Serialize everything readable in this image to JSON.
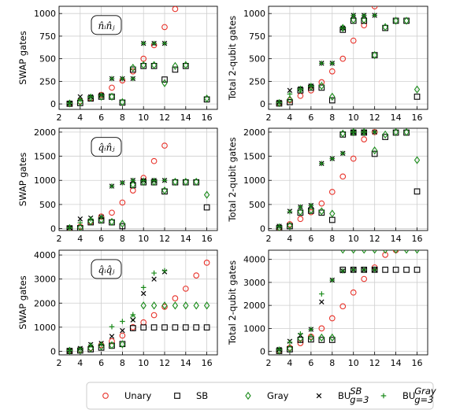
{
  "chart_data": [
    {
      "type": "scatter",
      "annotation": "n̂ᵢn̂ⱼ",
      "ylabel": "SWAP gates",
      "xlim": [
        2,
        17
      ],
      "ylim": [
        -60,
        1080
      ],
      "xticks": [
        2,
        4,
        6,
        8,
        10,
        12,
        14,
        16
      ],
      "yticks": [
        0,
        250,
        500,
        750,
        1000
      ],
      "grid": true,
      "series": [
        {
          "name": "Unary",
          "marker": "circle",
          "color": "#e8322a",
          "x": [
            3,
            4,
            5,
            6,
            7,
            8,
            9,
            10,
            11,
            12,
            13
          ],
          "y": [
            5,
            30,
            60,
            100,
            180,
            260,
            360,
            500,
            650,
            850,
            1050
          ]
        },
        {
          "name": "SB",
          "marker": "square",
          "color": "#000000",
          "x": [
            3,
            4,
            5,
            6,
            7,
            8,
            9,
            10,
            11,
            12,
            13,
            14,
            16
          ],
          "y": [
            2,
            10,
            60,
            80,
            80,
            15,
            380,
            420,
            420,
            270,
            380,
            420,
            50
          ]
        },
        {
          "name": "Gray",
          "marker": "diamond",
          "color": "#1a8a1a",
          "x": [
            3,
            4,
            5,
            6,
            7,
            8,
            9,
            10,
            11,
            12,
            13,
            14,
            16
          ],
          "y": [
            5,
            20,
            70,
            80,
            80,
            20,
            400,
            430,
            430,
            230,
            420,
            430,
            60
          ]
        },
        {
          "name": "BU_SB",
          "marker": "x",
          "color": "#000000",
          "x": [
            3,
            4,
            5,
            6,
            7,
            8,
            9,
            10,
            11,
            12
          ],
          "y": [
            10,
            80,
            80,
            100,
            280,
            280,
            280,
            670,
            670,
            670
          ]
        },
        {
          "name": "BU_Gray",
          "marker": "plus",
          "color": "#1a8a1a",
          "x": [
            3,
            4,
            5,
            6,
            7,
            8,
            9,
            10,
            11,
            12
          ],
          "y": [
            10,
            50,
            80,
            100,
            280,
            280,
            280,
            670,
            670,
            670
          ]
        }
      ]
    },
    {
      "type": "scatter",
      "ylabel": "Total 2-qubit gates",
      "xlim": [
        2,
        17
      ],
      "ylim": [
        -60,
        1080
      ],
      "xticks": [
        2,
        4,
        6,
        8,
        10,
        12,
        14,
        16
      ],
      "yticks": [
        0,
        250,
        500,
        750,
        1000
      ],
      "grid": true,
      "series": [
        {
          "name": "Unary",
          "marker": "circle",
          "color": "#e8322a",
          "x": [
            3,
            4,
            5,
            6,
            7,
            8,
            9,
            10,
            11,
            12
          ],
          "y": [
            10,
            40,
            90,
            150,
            240,
            360,
            500,
            700,
            870,
            1080
          ]
        },
        {
          "name": "SB",
          "marker": "square",
          "color": "#000000",
          "x": [
            3,
            4,
            5,
            6,
            7,
            8,
            9,
            10,
            11,
            12,
            13,
            14,
            15,
            16
          ],
          "y": [
            5,
            20,
            150,
            180,
            180,
            40,
            820,
            920,
            920,
            540,
            840,
            920,
            920,
            80
          ]
        },
        {
          "name": "Gray",
          "marker": "diamond",
          "color": "#1a8a1a",
          "x": [
            3,
            4,
            5,
            6,
            7,
            8,
            9,
            10,
            11,
            12,
            13,
            14,
            15,
            16
          ],
          "y": [
            10,
            50,
            160,
            190,
            200,
            80,
            840,
            930,
            930,
            540,
            850,
            920,
            920,
            160
          ]
        },
        {
          "name": "BU_SB",
          "marker": "x",
          "color": "#000000",
          "x": [
            3,
            4,
            5,
            6,
            7,
            8,
            9,
            10,
            11,
            12
          ],
          "y": [
            20,
            150,
            170,
            200,
            450,
            450,
            840,
            980,
            980,
            980
          ]
        },
        {
          "name": "BU_Gray",
          "marker": "plus",
          "color": "#1a8a1a",
          "x": [
            3,
            4,
            5,
            6,
            7,
            8,
            9,
            10,
            11,
            12
          ],
          "y": [
            20,
            110,
            160,
            200,
            450,
            450,
            840,
            980,
            980,
            980
          ]
        }
      ]
    },
    {
      "type": "scatter",
      "annotation": "q̂ᵢn̂ⱼ",
      "ylabel": "SWAP gates",
      "xlim": [
        2,
        17
      ],
      "ylim": [
        -40,
        2080
      ],
      "xticks": [
        2,
        4,
        6,
        8,
        10,
        12,
        14,
        16
      ],
      "yticks": [
        0,
        500,
        1000,
        1500,
        2000
      ],
      "grid": true,
      "series": [
        {
          "name": "Unary",
          "marker": "circle",
          "color": "#e8322a",
          "x": [
            3,
            4,
            5,
            6,
            7,
            8,
            9,
            10,
            11,
            12
          ],
          "y": [
            10,
            40,
            140,
            250,
            330,
            540,
            790,
            1050,
            1400,
            1720
          ]
        },
        {
          "name": "SB",
          "marker": "square",
          "color": "#000000",
          "x": [
            3,
            4,
            5,
            6,
            7,
            8,
            9,
            10,
            11,
            12,
            13,
            14,
            15,
            16
          ],
          "y": [
            5,
            10,
            130,
            170,
            130,
            50,
            900,
            960,
            960,
            770,
            960,
            960,
            960,
            440
          ]
        },
        {
          "name": "Gray",
          "marker": "diamond",
          "color": "#1a8a1a",
          "x": [
            3,
            4,
            5,
            6,
            7,
            8,
            9,
            10,
            11,
            12,
            13,
            14,
            15,
            16
          ],
          "y": [
            10,
            20,
            150,
            180,
            140,
            100,
            910,
            970,
            970,
            790,
            970,
            970,
            970,
            700
          ]
        },
        {
          "name": "BU_SB",
          "marker": "x",
          "color": "#000000",
          "x": [
            3,
            4,
            5,
            6,
            7,
            8,
            9,
            10,
            11,
            12
          ],
          "y": [
            20,
            200,
            220,
            240,
            880,
            950,
            1000,
            1000,
            1000,
            1000
          ]
        },
        {
          "name": "BU_Gray",
          "marker": "plus",
          "color": "#1a8a1a",
          "x": [
            3,
            4,
            5,
            6,
            7,
            8,
            9,
            10,
            11,
            12
          ],
          "y": [
            20,
            120,
            200,
            240,
            880,
            950,
            1000,
            1000,
            1000,
            1000
          ]
        }
      ]
    },
    {
      "type": "scatter",
      "ylabel": "Total 2-qubit gates",
      "xlim": [
        2,
        17
      ],
      "ylim": [
        -40,
        2080
      ],
      "xticks": [
        2,
        4,
        6,
        8,
        10,
        12,
        14,
        16
      ],
      "yticks": [
        0,
        500,
        1000,
        1500,
        2000
      ],
      "grid": true,
      "series": [
        {
          "name": "Unary",
          "marker": "circle",
          "color": "#e8322a",
          "x": [
            3,
            4,
            5,
            6,
            7,
            8,
            9,
            10,
            11,
            12
          ],
          "y": [
            20,
            90,
            200,
            340,
            520,
            760,
            1080,
            1450,
            1850,
            2000
          ]
        },
        {
          "name": "SB",
          "marker": "square",
          "color": "#000000",
          "x": [
            3,
            4,
            5,
            6,
            7,
            8,
            9,
            10,
            11,
            12,
            13,
            14,
            15,
            16
          ],
          "y": [
            10,
            50,
            330,
            370,
            330,
            180,
            1950,
            1990,
            1990,
            1550,
            1900,
            1990,
            1990,
            770
          ]
        },
        {
          "name": "Gray",
          "marker": "diamond",
          "color": "#1a8a1a",
          "x": [
            3,
            4,
            5,
            6,
            7,
            8,
            9,
            10,
            11,
            12,
            13,
            14,
            15,
            16
          ],
          "y": [
            20,
            60,
            350,
            380,
            360,
            310,
            1970,
            2000,
            2000,
            1620,
            1950,
            2000,
            2000,
            1420
          ]
        },
        {
          "name": "BU_SB",
          "marker": "x",
          "color": "#000000",
          "x": [
            3,
            4,
            5,
            6,
            7,
            8,
            9,
            10,
            11,
            12
          ],
          "y": [
            50,
            360,
            450,
            480,
            1350,
            1450,
            1560,
            2000,
            2000,
            2000
          ]
        },
        {
          "name": "BU_Gray",
          "marker": "plus",
          "color": "#1a8a1a",
          "x": [
            3,
            4,
            5,
            6,
            7,
            8,
            9,
            10,
            11,
            12
          ],
          "y": [
            50,
            350,
            450,
            480,
            1350,
            1450,
            1560,
            2000,
            2000,
            2000
          ]
        }
      ]
    },
    {
      "type": "scatter",
      "annotation": "q̂ᵢq̂ⱼ",
      "ylabel": "SWAP gates",
      "xlim": [
        2,
        17
      ],
      "ylim": [
        -150,
        4200
      ],
      "xticks": [
        2,
        4,
        6,
        8,
        10,
        12,
        14,
        16
      ],
      "yticks": [
        0,
        1000,
        2000,
        3000,
        4000
      ],
      "grid": true,
      "series": [
        {
          "name": "Unary",
          "marker": "circle",
          "color": "#e8322a",
          "x": [
            3,
            4,
            5,
            6,
            7,
            8,
            9,
            10,
            11,
            12,
            13,
            14,
            15,
            16
          ],
          "y": [
            20,
            60,
            140,
            260,
            420,
            650,
            1000,
            1200,
            1500,
            1850,
            2200,
            2600,
            3150,
            3680
          ]
        },
        {
          "name": "SB",
          "marker": "square",
          "color": "#000000",
          "x": [
            3,
            4,
            5,
            6,
            7,
            8,
            9,
            10,
            11,
            12,
            13,
            14,
            15,
            16
          ],
          "y": [
            10,
            30,
            80,
            150,
            230,
            300,
            960,
            990,
            990,
            990,
            990,
            990,
            990,
            990
          ]
        },
        {
          "name": "Gray",
          "marker": "diamond",
          "color": "#1a8a1a",
          "x": [
            3,
            4,
            5,
            6,
            7,
            8,
            9,
            10,
            11,
            12,
            13,
            14,
            15,
            16
          ],
          "y": [
            20,
            40,
            120,
            200,
            250,
            290,
            1400,
            1900,
            1900,
            1900,
            1900,
            1900,
            1900,
            1900
          ]
        },
        {
          "name": "BU_SB",
          "marker": "x",
          "color": "#000000",
          "x": [
            3,
            4,
            5,
            6,
            7,
            8,
            9,
            10,
            11,
            12
          ],
          "y": [
            40,
            120,
            280,
            330,
            620,
            860,
            1300,
            2400,
            3000,
            3300
          ]
        },
        {
          "name": "BU_Gray",
          "marker": "plus",
          "color": "#1a8a1a",
          "x": [
            3,
            4,
            5,
            6,
            7,
            8,
            9,
            10,
            11,
            12
          ],
          "y": [
            40,
            100,
            260,
            300,
            1020,
            1240,
            1520,
            2650,
            3250,
            3350
          ]
        }
      ]
    },
    {
      "type": "scatter",
      "ylabel": "Total 2-qubit gates",
      "xlim": [
        2,
        17
      ],
      "ylim": [
        -150,
        4400
      ],
      "xticks": [
        2,
        4,
        6,
        8,
        10,
        12,
        14,
        16
      ],
      "yticks": [
        0,
        1000,
        2000,
        3000,
        4000
      ],
      "grid": true,
      "series": [
        {
          "name": "Unary",
          "marker": "circle",
          "color": "#e8322a",
          "x": [
            3,
            4,
            5,
            6,
            7,
            8,
            9,
            10,
            11,
            12,
            13,
            14
          ],
          "y": [
            40,
            160,
            360,
            640,
            1000,
            1440,
            1960,
            2560,
            3150,
            3650,
            4200,
            4400
          ]
        },
        {
          "name": "SB",
          "marker": "square",
          "color": "#000000",
          "x": [
            3,
            4,
            5,
            6,
            7,
            8,
            9,
            10,
            11,
            12,
            13,
            14,
            15,
            16
          ],
          "y": [
            20,
            90,
            500,
            520,
            500,
            500,
            3550,
            3550,
            3550,
            3550,
            3550,
            3550,
            3550,
            3550
          ]
        },
        {
          "name": "Gray",
          "marker": "diamond",
          "color": "#1a8a1a",
          "x": [
            3,
            4,
            5,
            6,
            7,
            8,
            9,
            10,
            11,
            12,
            13,
            14,
            15,
            16
          ],
          "y": [
            40,
            120,
            560,
            600,
            600,
            600,
            4420,
            4420,
            4420,
            4420,
            4420,
            4420,
            4420,
            4420
          ]
        },
        {
          "name": "BU_SB",
          "marker": "x",
          "color": "#000000",
          "x": [
            3,
            4,
            5,
            6,
            7,
            8,
            9,
            10,
            11,
            12
          ],
          "y": [
            90,
            440,
            700,
            960,
            2150,
            3100,
            3500,
            3550,
            3550,
            3550
          ]
        },
        {
          "name": "BU_Gray",
          "marker": "plus",
          "color": "#1a8a1a",
          "x": [
            3,
            4,
            5,
            6,
            7,
            8,
            9,
            10,
            11,
            12
          ],
          "y": [
            90,
            400,
            760,
            960,
            2500,
            3100,
            3500,
            3550,
            3550,
            3550
          ]
        }
      ]
    }
  ],
  "legend": {
    "placement": "bottom",
    "entries": [
      {
        "label": "Unary",
        "marker": "circle",
        "color": "#e8322a"
      },
      {
        "label": "SB",
        "marker": "square",
        "color": "#000000"
      },
      {
        "label": "Gray",
        "marker": "diamond",
        "color": "#1a8a1a"
      },
      {
        "label": "BU",
        "sup": "SB",
        "sub": "g=3",
        "marker": "x",
        "color": "#000000"
      },
      {
        "label": "BU",
        "sup": "Gray",
        "sub": "g=3",
        "marker": "plus",
        "color": "#1a8a1a"
      }
    ]
  }
}
